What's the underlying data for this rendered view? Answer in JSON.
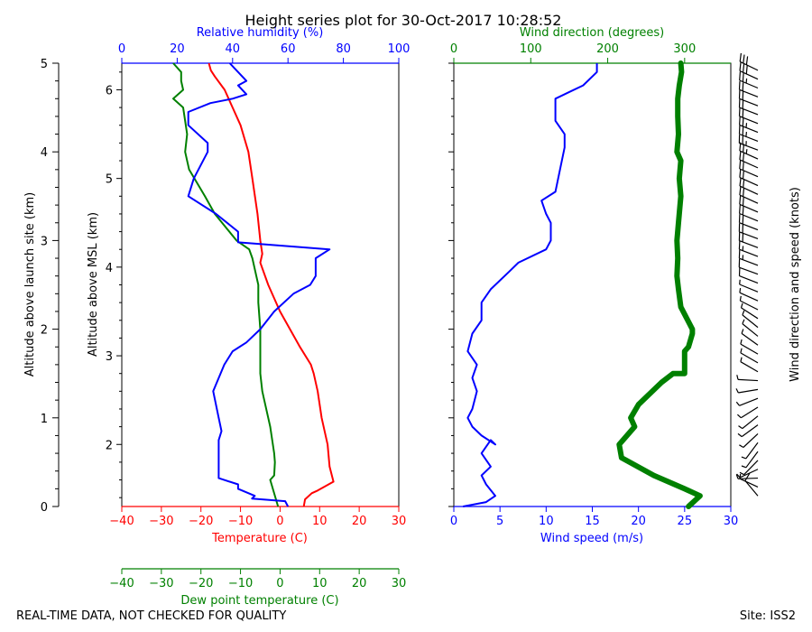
{
  "colors": {
    "temperature": "#ff0000",
    "dewpoint": "#008000",
    "humidity": "#0000ff",
    "wind_speed": "#0000ff",
    "wind_direction": "#008000",
    "barbs": "#000000",
    "text": "#000000"
  },
  "figure": {
    "title": "Height series plot for 30-Oct-2017 10:28:52",
    "footer_left": "REAL-TIME DATA, NOT CHECKED FOR QUALITY",
    "footer_right": "Site: ISS2",
    "barb_label": "Wind direction and speed (knots)"
  },
  "chart_data": [
    {
      "id": "thermo",
      "type": "line",
      "title": "",
      "axes": {
        "left_outer": {
          "label": "Altitude above launch site (km)",
          "range": [
            0,
            5
          ],
          "ticks": [
            0,
            1,
            2,
            3,
            4,
            5
          ]
        },
        "left_inner": {
          "label": "Altitude above MSL (km)",
          "range": [
            1.3,
            6.3
          ],
          "ticks": [
            2,
            3,
            4,
            5,
            6
          ]
        },
        "top": {
          "label": "Relative humidity (%)",
          "range": [
            0,
            100
          ],
          "ticks": [
            0,
            20,
            40,
            60,
            80,
            100
          ]
        },
        "bottom": {
          "label": "Temperature (C)",
          "range": [
            -40,
            30
          ],
          "ticks": [
            -40,
            -30,
            -20,
            -10,
            0,
            10,
            20,
            30
          ]
        },
        "bottom2": {
          "label": "Dew point temperature (C)",
          "range": [
            -40,
            30
          ],
          "ticks": [
            -40,
            -30,
            -20,
            -10,
            0,
            10,
            20,
            30
          ]
        }
      },
      "series": [
        {
          "name": "Temperature",
          "unit": "C",
          "points": [
            [
              6,
              0
            ],
            [
              6.3,
              0.08
            ],
            [
              8,
              0.15
            ],
            [
              9.5,
              0.18
            ],
            [
              13.5,
              0.28
            ],
            [
              12.5,
              0.45
            ],
            [
              12,
              0.7
            ],
            [
              10.5,
              1.0
            ],
            [
              9.5,
              1.3
            ],
            [
              8.5,
              1.5
            ],
            [
              7.8,
              1.6
            ],
            [
              5,
              1.8
            ],
            [
              0,
              2.2
            ],
            [
              -3,
              2.5
            ],
            [
              -5,
              2.75
            ],
            [
              -4.5,
              2.85
            ],
            [
              -5,
              3.0
            ],
            [
              -5.7,
              3.3
            ],
            [
              -7,
              3.7
            ],
            [
              -8,
              4.0
            ],
            [
              -10,
              4.3
            ],
            [
              -12,
              4.5
            ],
            [
              -14,
              4.7
            ],
            [
              -16.5,
              4.85
            ],
            [
              -17.5,
              4.92
            ],
            [
              -18,
              5.0
            ]
          ]
        },
        {
          "name": "Dew point",
          "unit": "C",
          "points": [
            [
              -0.5,
              0
            ],
            [
              -2.5,
              0.3
            ],
            [
              -1.5,
              0.35
            ],
            [
              -1.3,
              0.5
            ],
            [
              -1.5,
              0.6
            ],
            [
              -2.5,
              0.9
            ],
            [
              -3,
              1.0
            ],
            [
              -4,
              1.2
            ],
            [
              -4.5,
              1.3
            ],
            [
              -5,
              1.5
            ],
            [
              -5,
              2.0
            ],
            [
              -5.5,
              2.3
            ],
            [
              -5.5,
              2.5
            ],
            [
              -6,
              2.6
            ],
            [
              -7,
              2.8
            ],
            [
              -7.8,
              2.9
            ],
            [
              -11,
              3.0
            ],
            [
              -16.5,
              3.3
            ],
            [
              -19,
              3.5
            ],
            [
              -23,
              3.8
            ],
            [
              -24,
              4.0
            ],
            [
              -23.5,
              4.2
            ],
            [
              -24.5,
              4.5
            ],
            [
              -27,
              4.6
            ],
            [
              -24.5,
              4.7
            ],
            [
              -25,
              4.8
            ],
            [
              -25,
              4.9
            ],
            [
              -27,
              5.0
            ]
          ]
        },
        {
          "name": "Relative humidity",
          "unit": "%",
          "points": [
            [
              60,
              0
            ],
            [
              59,
              0.06
            ],
            [
              47,
              0.09
            ],
            [
              48,
              0.12
            ],
            [
              42,
              0.2
            ],
            [
              42,
              0.25
            ],
            [
              35,
              0.32
            ],
            [
              35,
              0.5
            ],
            [
              35,
              0.75
            ],
            [
              36,
              0.85
            ],
            [
              35,
              1.0
            ],
            [
              33,
              1.3
            ],
            [
              37,
              1.6
            ],
            [
              40,
              1.75
            ],
            [
              45,
              1.85
            ],
            [
              50,
              2.0
            ],
            [
              55,
              2.2
            ],
            [
              62,
              2.4
            ],
            [
              68,
              2.5
            ],
            [
              70,
              2.6
            ],
            [
              70,
              2.8
            ],
            [
              75,
              2.9
            ],
            [
              42,
              2.98
            ],
            [
              42,
              3.1
            ],
            [
              34,
              3.3
            ],
            [
              24,
              3.5
            ],
            [
              26,
              3.7
            ],
            [
              31,
              4.0
            ],
            [
              31,
              4.1
            ],
            [
              24,
              4.3
            ],
            [
              24,
              4.45
            ],
            [
              32,
              4.55
            ],
            [
              40,
              4.6
            ],
            [
              45,
              4.65
            ],
            [
              42,
              4.75
            ],
            [
              45,
              4.8
            ],
            [
              42,
              4.9
            ],
            [
              39,
              5.0
            ]
          ]
        }
      ]
    },
    {
      "id": "wind",
      "type": "line",
      "title": "",
      "axes": {
        "bottom": {
          "label": "Wind speed (m/s)",
          "range": [
            0,
            30
          ],
          "ticks": [
            0,
            5,
            10,
            15,
            20,
            25,
            30
          ]
        },
        "top": {
          "label": "Wind direction (degrees)",
          "range": [
            0,
            360
          ],
          "ticks": [
            0,
            100,
            200,
            300
          ]
        },
        "left": {
          "range": [
            0,
            5
          ]
        }
      },
      "series": [
        {
          "name": "Wind speed",
          "unit": "m/s",
          "points": [
            [
              1,
              0
            ],
            [
              3.5,
              0.05
            ],
            [
              4.5,
              0.12
            ],
            [
              3.5,
              0.25
            ],
            [
              3,
              0.35
            ],
            [
              4,
              0.45
            ],
            [
              3,
              0.6
            ],
            [
              4,
              0.75
            ],
            [
              4.5,
              0.7
            ],
            [
              3,
              0.8
            ],
            [
              2,
              0.9
            ],
            [
              1.5,
              1.0
            ],
            [
              2,
              1.1
            ],
            [
              2.5,
              1.3
            ],
            [
              2,
              1.45
            ],
            [
              2.5,
              1.6
            ],
            [
              1.5,
              1.75
            ],
            [
              2,
              1.95
            ],
            [
              3,
              2.1
            ],
            [
              3,
              2.3
            ],
            [
              4,
              2.45
            ],
            [
              6,
              2.65
            ],
            [
              7,
              2.75
            ],
            [
              10,
              2.9
            ],
            [
              10.5,
              3.0
            ],
            [
              10.5,
              3.2
            ],
            [
              10,
              3.3
            ],
            [
              9.5,
              3.45
            ],
            [
              11,
              3.55
            ],
            [
              11.5,
              3.8
            ],
            [
              12,
              4.05
            ],
            [
              12,
              4.2
            ],
            [
              11,
              4.35
            ],
            [
              11,
              4.6
            ],
            [
              14,
              4.75
            ],
            [
              15.5,
              4.9
            ],
            [
              15.5,
              5.0
            ]
          ]
        },
        {
          "name": "Wind direction",
          "unit": "deg",
          "points": [
            [
              305,
              0
            ],
            [
              320,
              0.12
            ],
            [
              300,
              0.2
            ],
            [
              260,
              0.35
            ],
            [
              218,
              0.55
            ],
            [
              215,
              0.7
            ],
            [
              235,
              0.9
            ],
            [
              230,
              1.0
            ],
            [
              240,
              1.15
            ],
            [
              270,
              1.4
            ],
            [
              285,
              1.5
            ],
            [
              300,
              1.5
            ],
            [
              300,
              1.75
            ],
            [
              305,
              1.8
            ],
            [
              310,
              1.95
            ],
            [
              310,
              2.0
            ],
            [
              295,
              2.25
            ],
            [
              292,
              2.45
            ],
            [
              290,
              2.6
            ],
            [
              291,
              2.8
            ],
            [
              290,
              3.0
            ],
            [
              292,
              3.2
            ],
            [
              295,
              3.5
            ],
            [
              293,
              3.7
            ],
            [
              295,
              3.9
            ],
            [
              290,
              4.0
            ],
            [
              292,
              4.2
            ],
            [
              291,
              4.4
            ],
            [
              291,
              4.6
            ],
            [
              293,
              4.75
            ],
            [
              296,
              4.9
            ],
            [
              295,
              5.0
            ]
          ]
        }
      ]
    }
  ]
}
